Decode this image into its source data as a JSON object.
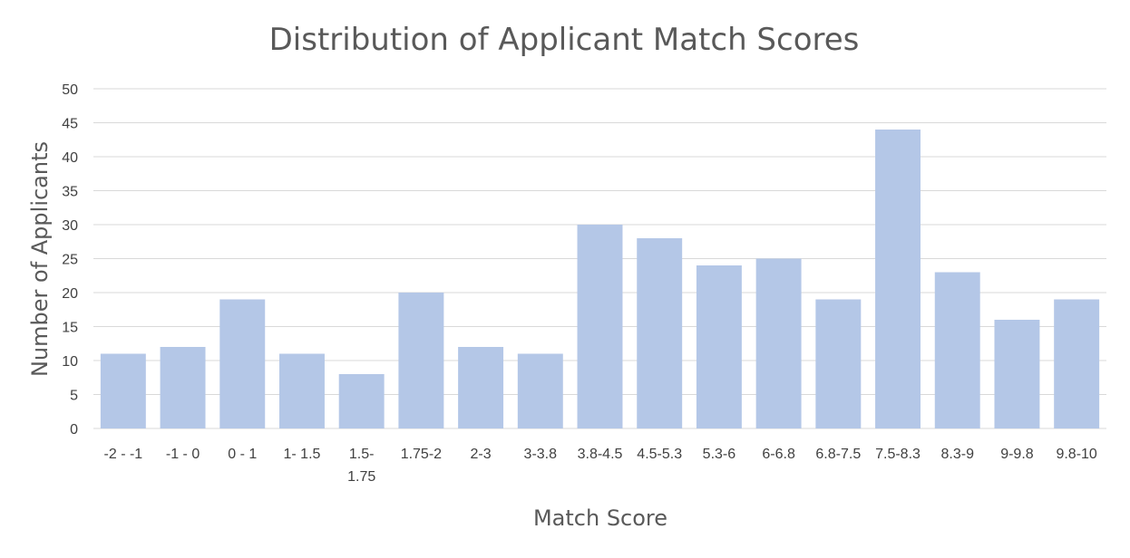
{
  "chart_data": {
    "type": "bar",
    "title": "Distribution of Applicant Match Scores",
    "xlabel": "Match Score",
    "ylabel": "Number of Applicants",
    "categories": [
      "-2 - -1",
      "-1 - 0",
      "0 - 1",
      "1- 1.5",
      "1.5- 1.75",
      "1.75-2",
      "2-3",
      "3-3.8",
      "3.8-4.5",
      "4.5-5.3",
      "5.3-6",
      "6-6.8",
      "6.8-7.5",
      "7.5-8.3",
      "8.3-9",
      "9-9.8",
      "9.8-10"
    ],
    "values": [
      11,
      12,
      19,
      11,
      8,
      20,
      12,
      11,
      30,
      28,
      24,
      25,
      19,
      44,
      23,
      16,
      19
    ],
    "ylim": [
      0,
      50
    ],
    "yticks": [
      0,
      5,
      10,
      15,
      20,
      25,
      30,
      35,
      40,
      45,
      50
    ],
    "grid": true,
    "bar_color": "#b4c7e7"
  }
}
